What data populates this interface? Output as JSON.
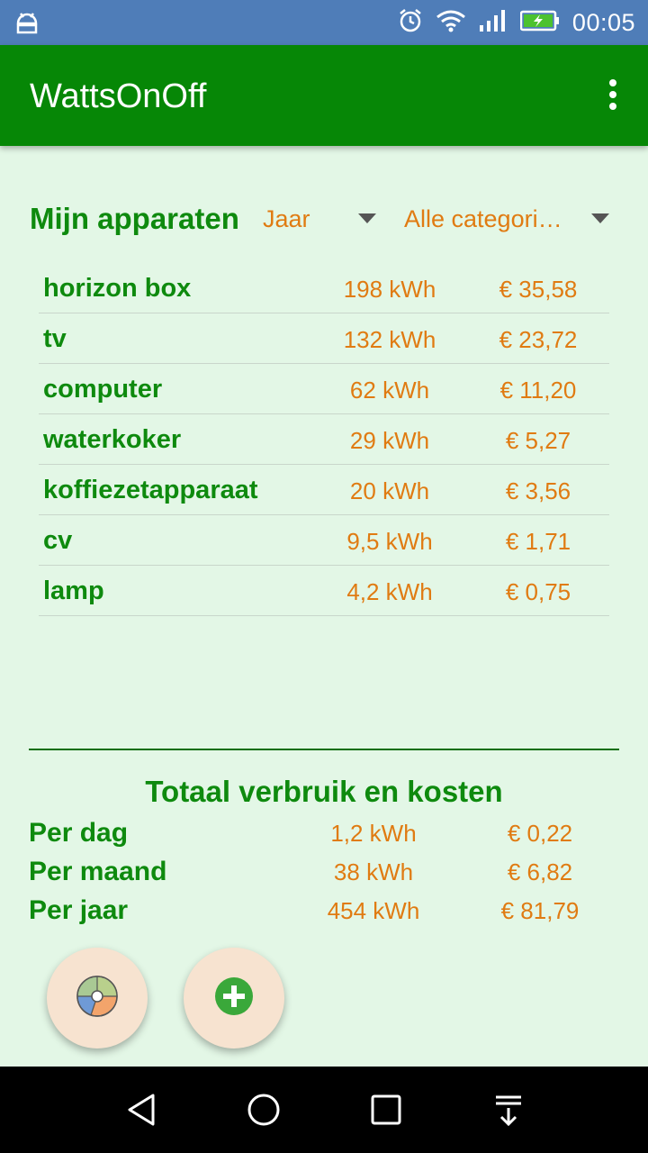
{
  "status_bar": {
    "time": "00:05",
    "icons": [
      "android-debug-icon",
      "alarm-icon",
      "wifi-icon",
      "signal-icon",
      "battery-charging-icon"
    ]
  },
  "app_bar": {
    "title": "WattsOnOff",
    "menu_icon": "overflow-menu-icon"
  },
  "header": {
    "title": "Mijn apparaten",
    "period_select": "Jaar",
    "category_select": "Alle categorieën"
  },
  "devices": [
    {
      "name": "horizon box",
      "kwh": "198 kWh",
      "cost": "€ 35,58"
    },
    {
      "name": "tv",
      "kwh": "132 kWh",
      "cost": "€ 23,72"
    },
    {
      "name": "computer",
      "kwh": "62 kWh",
      "cost": "€ 11,20"
    },
    {
      "name": "waterkoker",
      "kwh": "29 kWh",
      "cost": "€ 5,27"
    },
    {
      "name": "koffiezetapparaat",
      "kwh": "20 kWh",
      "cost": "€ 3,56"
    },
    {
      "name": "cv",
      "kwh": "9,5 kWh",
      "cost": "€ 1,71"
    },
    {
      "name": "lamp",
      "kwh": "4,2 kWh",
      "cost": "€ 0,75"
    }
  ],
  "totals": {
    "title": "Totaal verbruik en kosten",
    "rows": [
      {
        "label": "Per dag",
        "kwh": "1,2 kWh",
        "cost": "€ 0,22"
      },
      {
        "label": "Per maand",
        "kwh": "38 kWh",
        "cost": "€ 6,82"
      },
      {
        "label": "Per jaar",
        "kwh": "454 kWh",
        "cost": "€ 81,79"
      }
    ]
  },
  "fabs": {
    "chart_icon": "pie-chart-icon",
    "add_icon": "add-circle-icon"
  },
  "colors": {
    "app_bar": "#068706",
    "status_bar": "#4f7db8",
    "background": "#e3f7e6",
    "accent_orange": "#e07b12",
    "green_text": "#0e8a0e",
    "fab_bg": "#f7e3d0"
  }
}
